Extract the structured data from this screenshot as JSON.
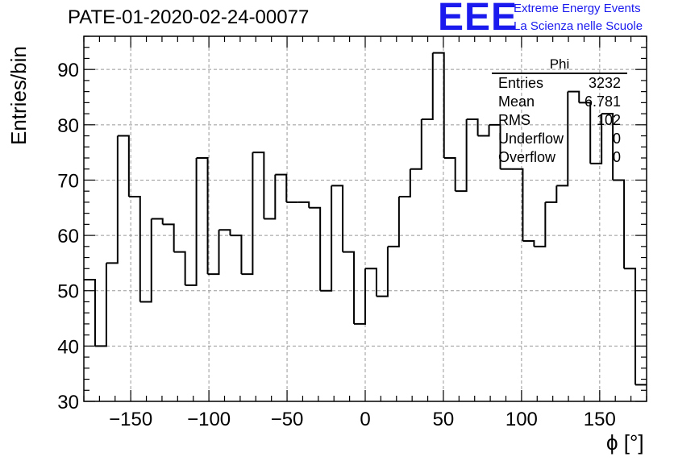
{
  "title": "PATE-01-2020-02-24-00077",
  "logo": {
    "mark": "EEE",
    "line1": "Extreme Energy Events",
    "line2": "La Scienza nelle Scuole",
    "color": "#1a1aee"
  },
  "stats_box": {
    "title": "Phi",
    "rows": [
      {
        "label": "Entries",
        "value": "3232"
      },
      {
        "label": "Mean",
        "value": "6.781"
      },
      {
        "label": "RMS",
        "value": "102"
      },
      {
        "label": "Underflow",
        "value": "0"
      },
      {
        "label": "Overflow",
        "value": "0"
      }
    ]
  },
  "chart_data": {
    "type": "histogram",
    "title": "PATE-01-2020-02-24-00077",
    "xlabel": "ϕ [°]",
    "ylabel": "Entries/bin",
    "xlim": [
      -180,
      180
    ],
    "ylim": [
      30,
      96
    ],
    "xticks": [
      -150,
      -100,
      -50,
      0,
      50,
      100,
      150
    ],
    "yticks": [
      30,
      40,
      50,
      60,
      70,
      80,
      90
    ],
    "grid": true,
    "bin_edges": [
      -180,
      -172.8,
      -165.6,
      -158.4,
      -151.2,
      -144,
      -136.8,
      -129.6,
      -122.4,
      -115.2,
      -108,
      -100.8,
      -93.6,
      -86.4,
      -79.2,
      -72,
      -64.8,
      -57.6,
      -50.4,
      -43.2,
      -36,
      -28.8,
      -21.6,
      -14.4,
      -7.2,
      0,
      7.2,
      14.4,
      21.6,
      28.8,
      36,
      43.2,
      50.4,
      57.6,
      64.8,
      72,
      79.2,
      86.4,
      93.6,
      100.8,
      108,
      115.2,
      122.4,
      129.6,
      136.8,
      144,
      151.2,
      158.4,
      165.6,
      172.8,
      180
    ],
    "counts": [
      52,
      40,
      55,
      78,
      67,
      48,
      63,
      62,
      57,
      51,
      74,
      53,
      61,
      60,
      53,
      75,
      63,
      71,
      66,
      66,
      65,
      50,
      69,
      57,
      44,
      54,
      49,
      58,
      67,
      72,
      81,
      93,
      74,
      68,
      81,
      78,
      80,
      72,
      72,
      59,
      58,
      66,
      69,
      86,
      84,
      73,
      82,
      70,
      54,
      33
    ],
    "line_color": "#000000"
  }
}
